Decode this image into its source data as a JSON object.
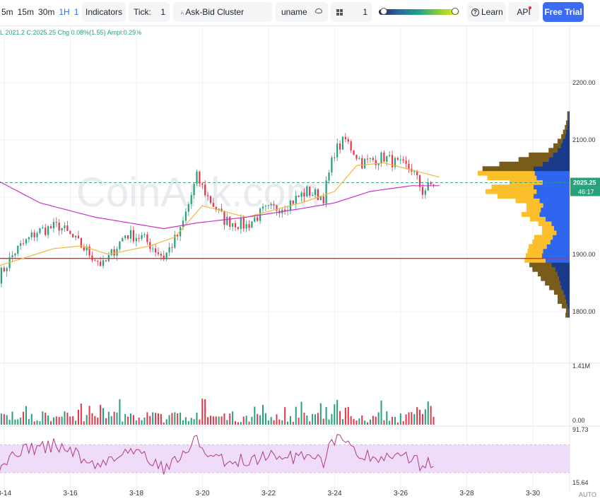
{
  "toolbar": {
    "intervals": [
      "5m",
      "15m",
      "30m",
      "1H",
      "1H"
    ],
    "active_interval": "1H",
    "indicators_label": "Indicators",
    "tick_label": "Tick:",
    "tick_value": "1",
    "cluster_label": "Ask-Bid Cluster",
    "user_label": "uname",
    "grid_value": "1",
    "heatmap_range": [
      0.06,
      0.95
    ],
    "learn_label": "Learn",
    "api_label": "API",
    "trial_label": "Free Trial"
  },
  "ohlc": {
    "text": "L:2021.2  C:2025.25  Chg:0.08%(1.55)  Ampl:0.29%"
  },
  "watermark": "CoinAnk.com",
  "colors": {
    "up": "#26a17b",
    "down": "#e0374a",
    "ma_fast": "#f5b63b",
    "ma_slow": "#c832c8",
    "hline": "#e02a2a",
    "profile_ask": "#fbbf2b",
    "profile_bid": "#2e66ef",
    "profile_dark": "#7a5c1a",
    "profile_navy": "#1a3a8a",
    "rsi": "#b03a8a",
    "rsi_band": "#efdcf8",
    "price_tag": "#26a17b",
    "accent": "#3b6cf3"
  },
  "chart_data": {
    "type": "candlestick",
    "x_ticks": [
      "3-14",
      "3-16",
      "3-18",
      "3-20",
      "3-22",
      "3-24",
      "3-26",
      "3-28",
      "3-30"
    ],
    "price_axis": {
      "ticks": [
        "2200.00",
        "2100.00",
        "2025.25",
        "1900.00",
        "1800.00"
      ],
      "last_price": "2025.25",
      "countdown": "46:17",
      "range": [
        1780,
        2230
      ]
    },
    "horizontal_line": 1893,
    "price_anchors": [
      [
        0,
        1860
      ],
      [
        6,
        1905
      ],
      [
        14,
        1940
      ],
      [
        22,
        1950
      ],
      [
        30,
        1915
      ],
      [
        38,
        1880
      ],
      [
        46,
        1935
      ],
      [
        52,
        1930
      ],
      [
        60,
        1895
      ],
      [
        66,
        1940
      ],
      [
        72,
        2035
      ],
      [
        76,
        2000
      ],
      [
        82,
        1960
      ],
      [
        90,
        1950
      ],
      [
        96,
        1975
      ],
      [
        104,
        1985
      ],
      [
        112,
        2010
      ],
      [
        118,
        2000
      ],
      [
        122,
        2080
      ],
      [
        126,
        2100
      ],
      [
        132,
        2060
      ],
      [
        140,
        2070
      ],
      [
        146,
        2055
      ],
      [
        150,
        2050
      ],
      [
        154,
        2010
      ],
      [
        158,
        2025
      ]
    ],
    "ma_fast_anchors": [
      [
        0,
        1880
      ],
      [
        20,
        1910
      ],
      [
        30,
        1915
      ],
      [
        40,
        1900
      ],
      [
        55,
        1915
      ],
      [
        64,
        1930
      ],
      [
        74,
        1985
      ],
      [
        90,
        1965
      ],
      [
        110,
        1990
      ],
      [
        122,
        2010
      ],
      [
        130,
        2055
      ],
      [
        140,
        2060
      ],
      [
        152,
        2045
      ],
      [
        160,
        2035
      ]
    ],
    "ma_slow_anchors": [
      [
        0,
        2028
      ],
      [
        15,
        1990
      ],
      [
        35,
        1965
      ],
      [
        60,
        1945
      ],
      [
        72,
        1955
      ],
      [
        90,
        1965
      ],
      [
        110,
        1980
      ],
      [
        122,
        1990
      ],
      [
        135,
        2010
      ],
      [
        150,
        2020
      ],
      [
        160,
        2020
      ]
    ],
    "volume_axis": {
      "ticks": [
        "1.41M",
        "0.00"
      ]
    },
    "rsi_axis": {
      "ticks": [
        "91.73",
        "15.64"
      ],
      "range": [
        15.64,
        91.73
      ],
      "band": [
        30,
        70
      ]
    },
    "auto_label": "AUTO",
    "volume_profile": {
      "price_low": 1790,
      "price_high": 2150,
      "ask": [
        5,
        4,
        9,
        14,
        12,
        16,
        20,
        25,
        30,
        33,
        38,
        37,
        35,
        27,
        26,
        30,
        30,
        31,
        24,
        20,
        22,
        26,
        30,
        24,
        28,
        40,
        60,
        85,
        70,
        55,
        82,
        95,
        85,
        72,
        50,
        40,
        15,
        12,
        8,
        6,
        5,
        4,
        3,
        2,
        2
      ],
      "bid": [
        2,
        2,
        4,
        6,
        8,
        10,
        14,
        16,
        18,
        20,
        24,
        30,
        40,
        46,
        44,
        38,
        32,
        28,
        22,
        26,
        30,
        40,
        50,
        48,
        44,
        50,
        60,
        55,
        60,
        45,
        55,
        58,
        60,
        45,
        35,
        28,
        20,
        15,
        12,
        8,
        6,
        4,
        3,
        2,
        2
      ],
      "dark_zone": [
        0,
        11,
        32,
        44
      ]
    }
  }
}
